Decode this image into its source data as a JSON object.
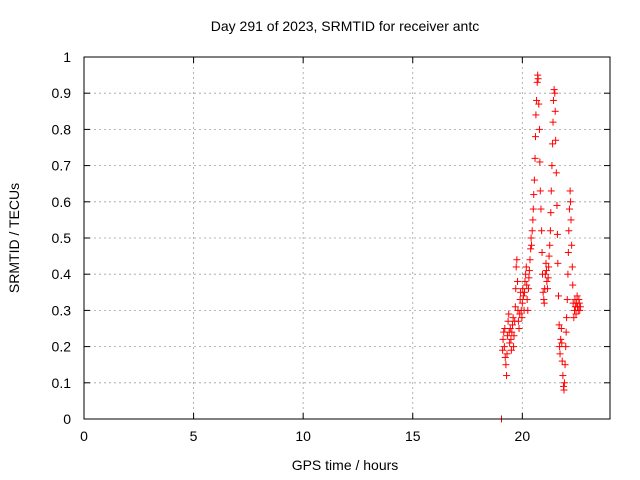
{
  "chart_data": {
    "type": "scatter",
    "title": "Day 291 of 2023, SRMTID for receiver antc",
    "xlabel": "GPS time / hours",
    "ylabel": "SRMTID / TECUs",
    "xlim": [
      0,
      24
    ],
    "ylim": [
      0,
      1
    ],
    "xticks": [
      0,
      5,
      10,
      15,
      20
    ],
    "xtick_labels": [
      "0",
      "5",
      "10",
      "15",
      "20"
    ],
    "yticks": [
      0,
      0.1,
      0.2,
      0.3,
      0.4,
      0.5,
      0.6,
      0.7,
      0.8,
      0.9,
      1
    ],
    "ytick_labels": [
      "0",
      "0.1",
      "0.2",
      "0.3",
      "0.4",
      "0.5",
      "0.6",
      "0.7",
      "0.8",
      "0.9",
      "1"
    ],
    "grid": true,
    "marker": "+",
    "color": "#ff0000",
    "series": [
      {
        "name": "SRMTID",
        "points": [
          [
            19.05,
            0.0
          ],
          [
            19.1,
            0.19
          ],
          [
            19.12,
            0.22
          ],
          [
            19.15,
            0.24
          ],
          [
            19.18,
            0.2
          ],
          [
            19.2,
            0.25
          ],
          [
            19.22,
            0.17
          ],
          [
            19.25,
            0.15
          ],
          [
            19.28,
            0.12
          ],
          [
            19.3,
            0.18
          ],
          [
            19.32,
            0.23
          ],
          [
            19.35,
            0.27
          ],
          [
            19.38,
            0.29
          ],
          [
            19.4,
            0.24
          ],
          [
            19.42,
            0.21
          ],
          [
            19.45,
            0.25
          ],
          [
            19.48,
            0.22
          ],
          [
            19.5,
            0.19
          ],
          [
            19.52,
            0.24
          ],
          [
            19.55,
            0.26
          ],
          [
            19.58,
            0.28
          ],
          [
            19.6,
            0.2
          ],
          [
            19.62,
            0.23
          ],
          [
            19.65,
            0.27
          ],
          [
            19.68,
            0.31
          ],
          [
            19.7,
            0.36
          ],
          [
            19.72,
            0.42
          ],
          [
            19.75,
            0.44
          ],
          [
            19.78,
            0.38
          ],
          [
            19.8,
            0.3
          ],
          [
            19.82,
            0.27
          ],
          [
            19.85,
            0.25
          ],
          [
            19.88,
            0.29
          ],
          [
            19.9,
            0.33
          ],
          [
            19.92,
            0.35
          ],
          [
            19.95,
            0.3
          ],
          [
            19.98,
            0.28
          ],
          [
            20.0,
            0.32
          ],
          [
            20.02,
            0.36
          ],
          [
            20.05,
            0.34
          ],
          [
            20.08,
            0.3
          ],
          [
            20.1,
            0.35
          ],
          [
            20.12,
            0.38
          ],
          [
            20.15,
            0.4
          ],
          [
            20.18,
            0.42
          ],
          [
            20.2,
            0.37
          ],
          [
            20.22,
            0.33
          ],
          [
            20.25,
            0.3
          ],
          [
            20.28,
            0.36
          ],
          [
            20.3,
            0.39
          ],
          [
            20.32,
            0.41
          ],
          [
            20.35,
            0.44
          ],
          [
            20.38,
            0.47
          ],
          [
            20.4,
            0.5
          ],
          [
            20.42,
            0.48
          ],
          [
            20.45,
            0.52
          ],
          [
            20.48,
            0.55
          ],
          [
            20.5,
            0.58
          ],
          [
            20.52,
            0.62
          ],
          [
            20.55,
            0.66
          ],
          [
            20.58,
            0.72
          ],
          [
            20.6,
            0.78
          ],
          [
            20.62,
            0.84
          ],
          [
            20.65,
            0.88
          ],
          [
            20.68,
            0.93
          ],
          [
            20.7,
            0.95
          ],
          [
            20.72,
            0.94
          ],
          [
            20.75,
            0.87
          ],
          [
            20.78,
            0.8
          ],
          [
            20.8,
            0.71
          ],
          [
            20.82,
            0.63
          ],
          [
            20.85,
            0.58
          ],
          [
            20.88,
            0.52
          ],
          [
            20.9,
            0.46
          ],
          [
            20.92,
            0.4
          ],
          [
            20.95,
            0.35
          ],
          [
            20.98,
            0.33
          ],
          [
            21.0,
            0.32
          ],
          [
            21.02,
            0.36
          ],
          [
            21.05,
            0.4
          ],
          [
            21.08,
            0.43
          ],
          [
            21.1,
            0.41
          ],
          [
            21.12,
            0.38
          ],
          [
            21.15,
            0.36
          ],
          [
            21.18,
            0.39
          ],
          [
            21.2,
            0.42
          ],
          [
            21.22,
            0.45
          ],
          [
            21.25,
            0.48
          ],
          [
            21.28,
            0.52
          ],
          [
            21.3,
            0.57
          ],
          [
            21.32,
            0.63
          ],
          [
            21.35,
            0.7
          ],
          [
            21.38,
            0.76
          ],
          [
            21.4,
            0.82
          ],
          [
            21.42,
            0.88
          ],
          [
            21.45,
            0.91
          ],
          [
            21.48,
            0.9
          ],
          [
            21.5,
            0.85
          ],
          [
            21.52,
            0.77
          ],
          [
            21.55,
            0.68
          ],
          [
            21.58,
            0.59
          ],
          [
            21.6,
            0.51
          ],
          [
            21.62,
            0.43
          ],
          [
            21.65,
            0.34
          ],
          [
            21.68,
            0.26
          ],
          [
            21.7,
            0.2
          ],
          [
            21.72,
            0.18
          ],
          [
            21.75,
            0.22
          ],
          [
            21.78,
            0.25
          ],
          [
            21.8,
            0.21
          ],
          [
            21.82,
            0.16
          ],
          [
            21.85,
            0.12
          ],
          [
            21.88,
            0.09
          ],
          [
            21.9,
            0.08
          ],
          [
            21.92,
            0.1
          ],
          [
            21.95,
            0.15
          ],
          [
            21.98,
            0.2
          ],
          [
            22.0,
            0.24
          ],
          [
            22.02,
            0.28
          ],
          [
            22.05,
            0.33
          ],
          [
            22.08,
            0.4
          ],
          [
            22.1,
            0.46
          ],
          [
            22.12,
            0.52
          ],
          [
            22.15,
            0.58
          ],
          [
            22.18,
            0.63
          ],
          [
            22.2,
            0.6
          ],
          [
            22.22,
            0.55
          ],
          [
            22.25,
            0.48
          ],
          [
            22.28,
            0.42
          ],
          [
            22.3,
            0.37
          ],
          [
            22.32,
            0.32
          ],
          [
            22.35,
            0.28
          ],
          [
            22.38,
            0.3
          ],
          [
            22.4,
            0.33
          ],
          [
            22.42,
            0.31
          ],
          [
            22.45,
            0.29
          ],
          [
            22.48,
            0.32
          ],
          [
            22.5,
            0.34
          ],
          [
            22.52,
            0.31
          ],
          [
            22.55,
            0.3
          ],
          [
            22.58,
            0.33
          ],
          [
            22.6,
            0.32
          ],
          [
            22.62,
            0.3
          ],
          [
            22.65,
            0.31
          ]
        ]
      }
    ]
  }
}
